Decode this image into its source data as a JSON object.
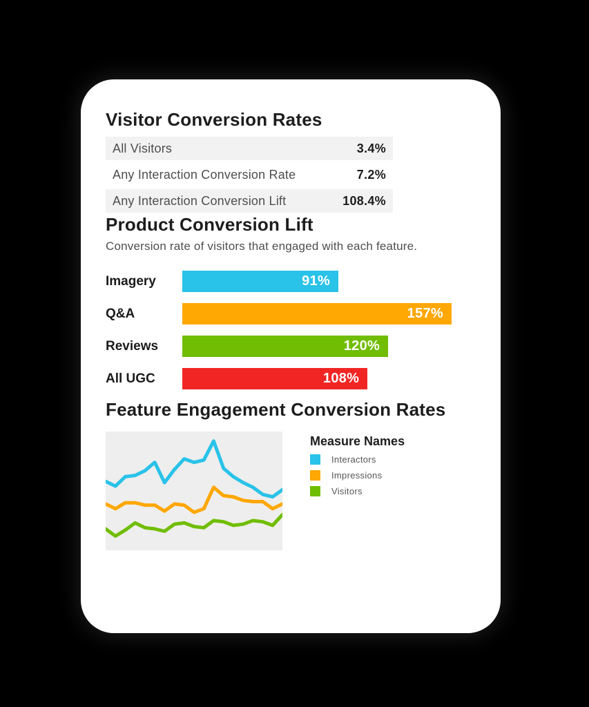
{
  "visitor_rates": {
    "title": "Visitor Conversion Rates",
    "rows": [
      {
        "label": "All Visitors",
        "value": "3.4%"
      },
      {
        "label": "Any Interaction Conversion Rate",
        "value": "7.2%"
      },
      {
        "label": "Any Interaction Conversion Lift",
        "value": "108.4%"
      }
    ]
  },
  "colors": {
    "blue": "#29c2e8",
    "orange": "#ffa702",
    "green": "#70bd03",
    "red": "#f22525",
    "table_row_bg": "#f3f2f2",
    "chart_bg": "#eeeeee",
    "card_bg": "#ffffff",
    "page_bg": "#000000"
  },
  "chart_data": [
    {
      "type": "bar",
      "orientation": "horizontal",
      "title": "Product Conversion Lift",
      "subtitle": "Conversion rate of visitors that engaged with each feature.",
      "categories": [
        "Imagery",
        "Q&A",
        "Reviews",
        "All UGC"
      ],
      "values": [
        91,
        157,
        120,
        108
      ],
      "value_labels": [
        "91%",
        "157%",
        "120%",
        "108%"
      ],
      "colors": [
        "#29c2e8",
        "#ffa702",
        "#70bd03",
        "#f22525"
      ],
      "xmax": 157,
      "value_label_position": "inside-end",
      "grid": false,
      "axes_hidden": true
    },
    {
      "type": "line",
      "title": "Feature Engagement Conversion Rates",
      "legend_title": "Measure Names",
      "legend_position": "right",
      "grid": false,
      "axes_hidden": true,
      "ylim": [
        0,
        100
      ],
      "series": [
        {
          "name": "Interactors",
          "color": "#29c2e8",
          "values": [
            58,
            54,
            62,
            63,
            67,
            74,
            57,
            68,
            77,
            74,
            76,
            92,
            69,
            62,
            57,
            53,
            47,
            45,
            51
          ]
        },
        {
          "name": "Impressions",
          "color": "#ffa702",
          "values": [
            39,
            35,
            40,
            40,
            38,
            38,
            33,
            39,
            38,
            32,
            35,
            53,
            46,
            45,
            42,
            41,
            41,
            35,
            39
          ]
        },
        {
          "name": "Visitors",
          "color": "#70bd03",
          "values": [
            18,
            12,
            17,
            23,
            19,
            18,
            16,
            22,
            23,
            20,
            19,
            25,
            24,
            21,
            22,
            25,
            24,
            21,
            30
          ]
        }
      ]
    }
  ]
}
